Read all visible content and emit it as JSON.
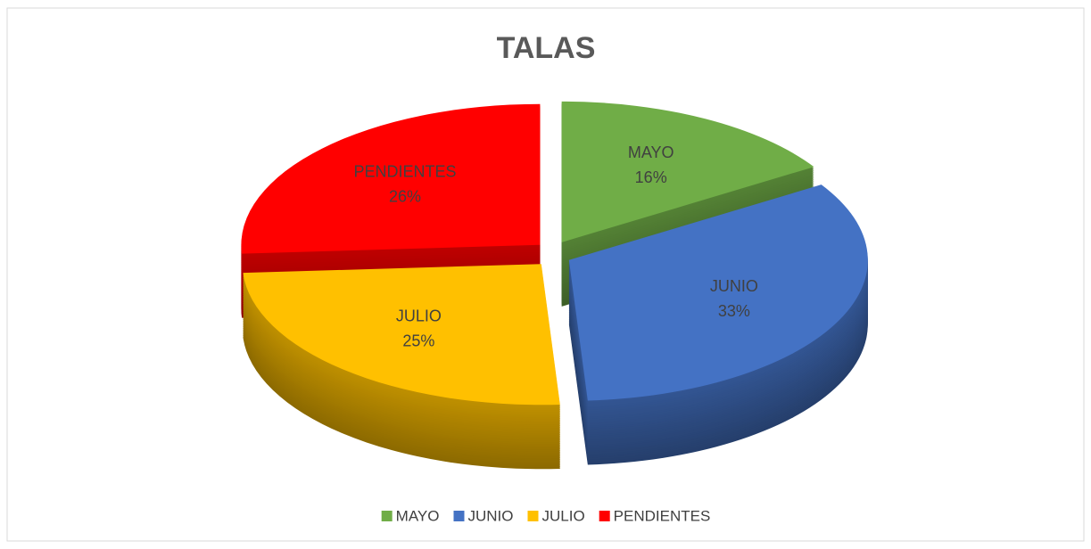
{
  "chart_data": {
    "type": "pie",
    "title": "TALAS",
    "categories": [
      "MAYO",
      "JUNIO",
      "JULIO",
      "PENDIENTES"
    ],
    "values": [
      16,
      33,
      25,
      26
    ],
    "value_labels": [
      "16%",
      "33%",
      "25%",
      "26%"
    ],
    "colors": [
      "#70ad47",
      "#4472c4",
      "#ffc000",
      "#ff0000"
    ],
    "legend": "bottom"
  }
}
